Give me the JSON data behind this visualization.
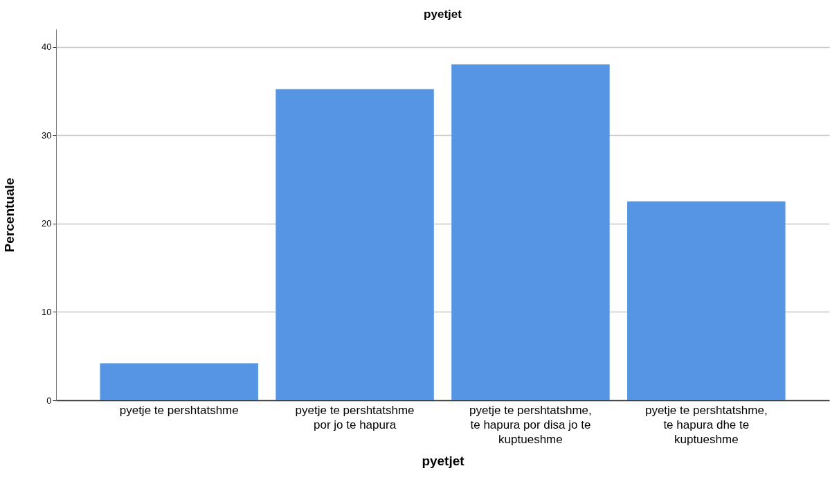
{
  "chart_data": {
    "type": "bar",
    "title": "pyetjet",
    "xlabel": "pyetjet",
    "ylabel": "Percentuale",
    "categories": [
      "pyetje te pershtatshme",
      "pyetje te pershtatshme por jo te hapura",
      "pyetje te pershtatshme, te hapura por disa jo te kuptueshme",
      "pyetje te pershtatshme, te hapura dhe te kuptueshme"
    ],
    "values": [
      4.2,
      35.2,
      38.0,
      22.5
    ],
    "color": "#5595e3",
    "ylim": [
      0,
      42
    ],
    "yticks": [
      0,
      10,
      20,
      30,
      40
    ],
    "grid": "y"
  }
}
